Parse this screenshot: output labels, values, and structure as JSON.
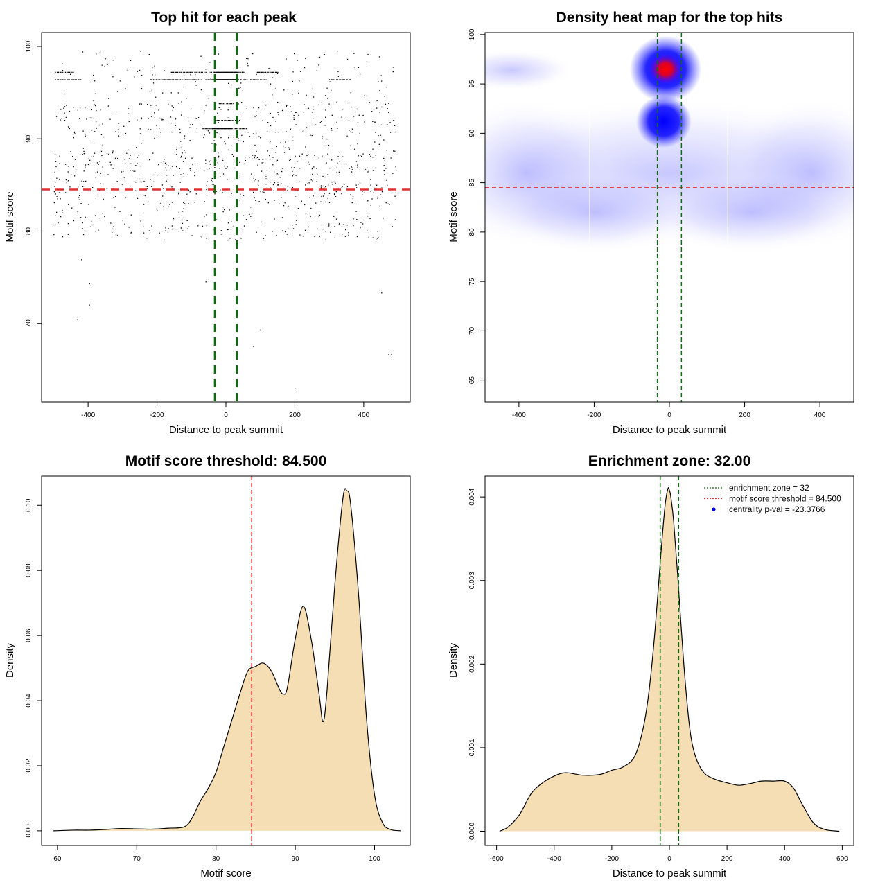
{
  "colors": {
    "threshold_line": "#e03030",
    "zone_line": "#0a6e0a",
    "density_fill": "#f5deb3",
    "heat_low": "#ffffff",
    "heat_mid": "#0000ff",
    "heat_high": "#ff0000",
    "point": "#000000"
  },
  "chart_data": [
    {
      "id": "scatter",
      "type": "scatter",
      "title": "Top hit for each peak",
      "xlabel": "Distance to peak summit",
      "ylabel": "Motif score",
      "xlim": [
        -535,
        535
      ],
      "ylim": [
        61.5,
        101.5
      ],
      "xticks": [
        -400,
        -200,
        0,
        200,
        400
      ],
      "yticks": [
        70,
        80,
        90,
        100
      ],
      "hline": 84.5,
      "vlines": [
        -32,
        32
      ],
      "grid": false,
      "points": {
        "note_distribution": "dense band between scores 78-99 across x -500..500",
        "n": 1500,
        "strips_y": [
          97.2,
          96.4,
          91.1,
          92.0,
          93.8
        ],
        "outliers": [
          [
            -430,
            70.4
          ],
          [
            -396,
            72.0
          ],
          [
            -396,
            74.3
          ],
          [
            -58,
            74.5
          ],
          [
            -419,
            76.9
          ],
          [
            101,
            69.3
          ],
          [
            80,
            67.5
          ],
          [
            202,
            62.9
          ],
          [
            472,
            66.6
          ],
          [
            480,
            66.6
          ],
          [
            452,
            73.3
          ]
        ]
      }
    },
    {
      "id": "heatmap",
      "type": "heatmap",
      "title": "Density heat map for the top hits",
      "xlabel": "Distance to peak summit",
      "ylabel": "Motif score",
      "xlim": [
        -490,
        490
      ],
      "ylim": [
        62.8,
        100.2
      ],
      "xticks": [
        -400,
        -200,
        0,
        200,
        400
      ],
      "yticks": [
        65,
        70,
        75,
        80,
        85,
        90,
        95,
        100
      ],
      "hline": 84.5,
      "vlines": [
        -32,
        32
      ],
      "hotspots": [
        {
          "x": -10,
          "y": 96.5,
          "weight": 1.0
        },
        {
          "x": -15,
          "y": 91.2,
          "weight": 0.6
        }
      ]
    },
    {
      "id": "score-density",
      "type": "area",
      "title": "Motif score threshold: 84.500",
      "xlabel": "Motif score",
      "ylabel": "Density",
      "xlim": [
        58,
        104.5
      ],
      "ylim": [
        -0.0045,
        0.109
      ],
      "xticks": [
        60,
        70,
        80,
        90,
        100
      ],
      "yticks": [
        0.0,
        0.02,
        0.04,
        0.06,
        0.08,
        0.1
      ],
      "ytick_labels": [
        "0.00",
        "0.02",
        "0.04",
        "0.06",
        "0.08",
        "0.10"
      ],
      "vline": 84.5,
      "x": [
        59.5,
        62,
        64,
        66,
        68,
        70,
        72,
        74,
        76,
        77,
        78,
        79,
        80,
        81,
        82,
        83,
        84,
        85,
        86,
        87,
        88,
        88.5,
        89,
        90,
        91,
        92,
        93,
        93.5,
        94,
        95,
        96,
        96.5,
        97,
        98,
        99,
        100,
        101,
        102,
        103.3
      ],
      "y": [
        0.0,
        0.0002,
        0.0002,
        0.0004,
        0.0007,
        0.0006,
        0.0005,
        0.0008,
        0.0012,
        0.004,
        0.009,
        0.013,
        0.018,
        0.026,
        0.034,
        0.042,
        0.049,
        0.0505,
        0.0515,
        0.049,
        0.0435,
        0.042,
        0.044,
        0.059,
        0.069,
        0.059,
        0.042,
        0.0335,
        0.043,
        0.076,
        0.102,
        0.1045,
        0.1,
        0.072,
        0.034,
        0.011,
        0.0025,
        0.0004,
        0.0
      ]
    },
    {
      "id": "distance-density",
      "type": "area",
      "title": "Enrichment zone: 32.00",
      "xlabel": "Distance to peak summit",
      "ylabel": "Density",
      "xlim": [
        -640,
        640
      ],
      "ylim": [
        -0.00017,
        0.00425
      ],
      "xticks": [
        -600,
        -400,
        -200,
        0,
        200,
        400,
        600
      ],
      "yticks": [
        0.0,
        0.001,
        0.002,
        0.003,
        0.004
      ],
      "ytick_labels": [
        "0.000",
        "0.001",
        "0.002",
        "0.003",
        "0.004"
      ],
      "vlines": [
        -32,
        32
      ],
      "x": [
        -590,
        -560,
        -520,
        -480,
        -440,
        -400,
        -360,
        -300,
        -240,
        -200,
        -160,
        -120,
        -90,
        -70,
        -50,
        -30,
        -15,
        -5,
        0,
        5,
        15,
        30,
        50,
        70,
        90,
        120,
        160,
        200,
        240,
        280,
        320,
        360,
        400,
        430,
        460,
        500,
        540,
        590
      ],
      "y": [
        0.0,
        5e-05,
        0.0002,
        0.00045,
        0.00058,
        0.00066,
        0.0007,
        0.00067,
        0.00068,
        0.00073,
        0.00077,
        0.0009,
        0.00125,
        0.0017,
        0.0024,
        0.0033,
        0.0039,
        0.0041,
        0.00408,
        0.004,
        0.0037,
        0.003,
        0.002,
        0.00125,
        0.0009,
        0.0007,
        0.00062,
        0.00058,
        0.00055,
        0.00057,
        0.0006,
        0.0006,
        0.0006,
        0.00052,
        0.00033,
        0.0001,
        2e-05,
        0.0
      ]
    }
  ],
  "legend": {
    "items": [
      {
        "label": "enrichment zone = 32",
        "color": "#0a6e0a",
        "kind": "dotted-line"
      },
      {
        "label": "motif score threshold = 84.500",
        "color": "#e03030",
        "kind": "dotted-line"
      },
      {
        "label": "centrality p-val = -23.3766",
        "color": "#0000ff",
        "kind": "dot"
      }
    ]
  }
}
